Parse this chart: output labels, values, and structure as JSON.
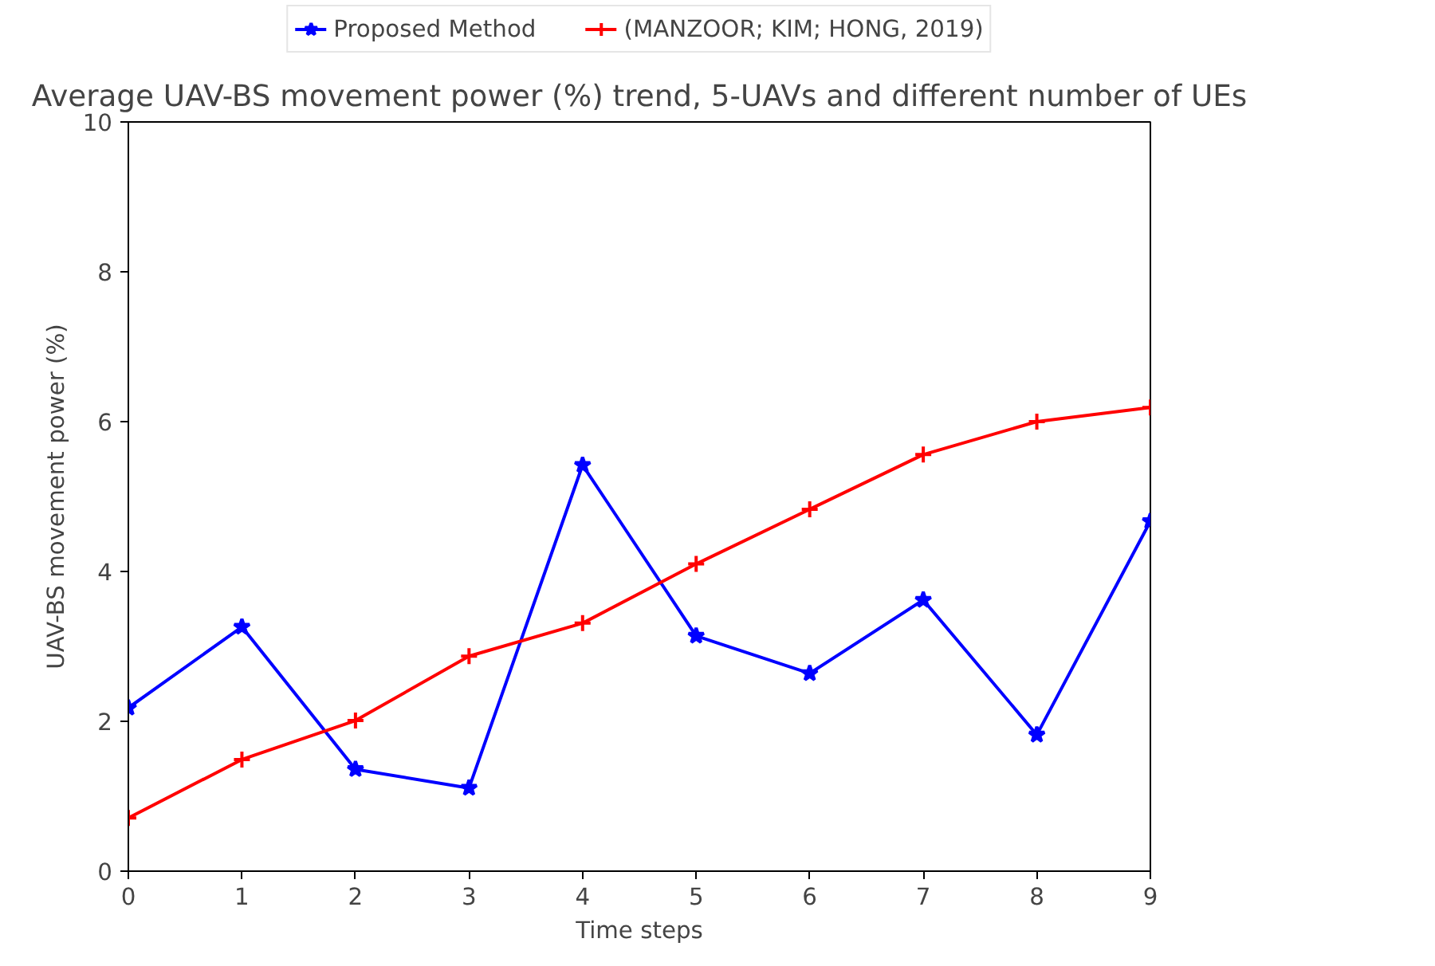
{
  "chart_data": {
    "type": "line",
    "title": "Average UAV-BS movement power (%) trend, 5-UAVs and different number of UEs",
    "xlabel": "Time steps",
    "ylabel": "UAV-BS movement power (%)",
    "x": [
      0,
      1,
      2,
      3,
      4,
      5,
      6,
      7,
      8,
      9
    ],
    "series": [
      {
        "name": "Proposed Method",
        "color": "#0000ff",
        "marker": "star",
        "values": [
          2.18,
          3.26,
          1.36,
          1.11,
          5.42,
          3.14,
          2.64,
          3.62,
          1.82,
          4.67
        ]
      },
      {
        "name": "(MANZOOR; KIM; HONG, 2019)",
        "color": "#ff0000",
        "marker": "cross",
        "values": [
          0.71,
          1.49,
          2.01,
          2.87,
          3.31,
          4.1,
          4.83,
          5.56,
          6.0,
          6.19
        ]
      }
    ],
    "xlim": [
      0,
      9
    ],
    "ylim": [
      0,
      10
    ],
    "xticks": [
      0,
      1,
      2,
      3,
      4,
      5,
      6,
      7,
      8,
      9
    ],
    "yticks": [
      0,
      2,
      4,
      6,
      8,
      10
    ],
    "grid": false,
    "legend": "top",
    "line_style": "solid"
  }
}
